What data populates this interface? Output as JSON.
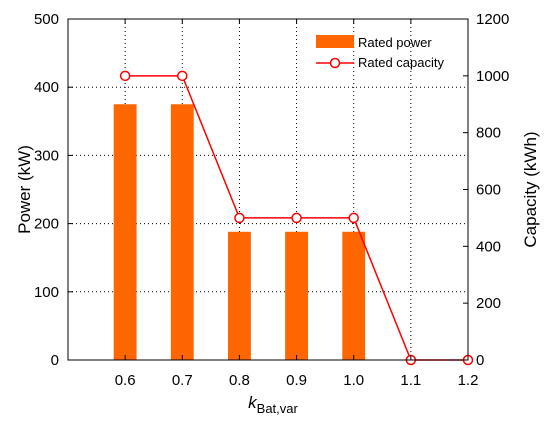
{
  "chart_data": {
    "type": "bar",
    "categories": [
      "0.6",
      "0.7",
      "0.8",
      "0.9",
      "1.0",
      "1.1",
      "1.2"
    ],
    "series": [
      {
        "name": "Rated power",
        "type": "bar",
        "axis": "left",
        "x": [
          "0.6",
          "0.7",
          "0.8",
          "0.9",
          "1.0"
        ],
        "values": [
          375,
          375,
          188,
          188,
          188
        ],
        "color": "#ff6600"
      },
      {
        "name": "Rated capacity",
        "type": "line",
        "axis": "right",
        "x": [
          "0.6",
          "0.7",
          "0.8",
          "0.9",
          "1.0",
          "1.1",
          "1.2"
        ],
        "values": [
          1000,
          1000,
          500,
          500,
          500,
          0,
          0
        ],
        "color": "#ff0000",
        "marker": "open-circle"
      }
    ],
    "x_ticks": [
      "0.6",
      "0.7",
      "0.8",
      "0.9",
      "1.0",
      "1.1",
      "1.2"
    ],
    "xlim": [
      0.5,
      1.2
    ],
    "ylim": [
      0,
      500
    ],
    "y_ticks": [
      "0",
      "100",
      "200",
      "300",
      "400",
      "500"
    ],
    "y2lim": [
      0,
      1200
    ],
    "y2_ticks": [
      "0",
      "200",
      "400",
      "600",
      "800",
      "1000",
      "1200"
    ],
    "xlabel": {
      "main": "k",
      "sub": "Bat,var"
    },
    "ylabel": "Power (kW)",
    "y2label": "Capacity (kWh)",
    "grid": true,
    "legend_position": "top-right"
  }
}
